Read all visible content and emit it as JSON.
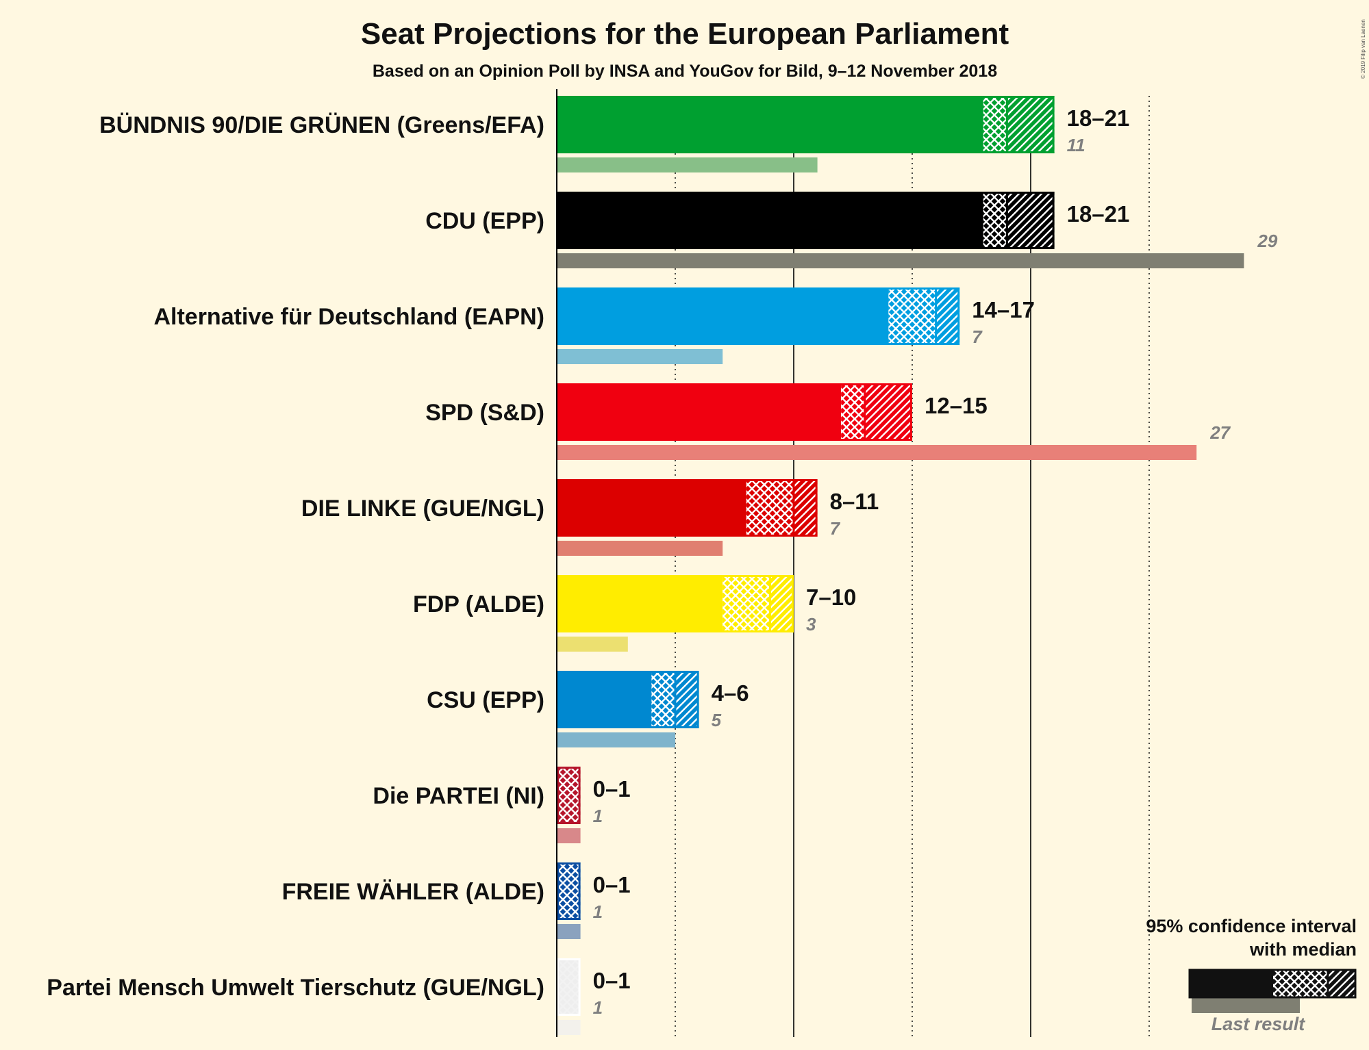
{
  "title": "Seat Projections for the European Parliament",
  "subtitle": "Based on an Opinion Poll by INSA and YouGov for Bild, 9–12 November 2018",
  "copyright": "© 2019 Filip van Laenen",
  "legend": {
    "line1": "95% confidence interval",
    "line2": "with median",
    "last_result": "Last result"
  },
  "chart_data": {
    "type": "bar",
    "orientation": "horizontal",
    "title": "Seat Projections for the European Parliament",
    "subtitle": "Based on an Opinion Poll by INSA and YouGov for Bild, 9–12 November 2018",
    "unit": "seats",
    "xlim": [
      0,
      30
    ],
    "gridlines": [
      5,
      10,
      15,
      20,
      25
    ],
    "parties": [
      {
        "name": "BÜNDNIS 90/DIE GRÜNEN (Greens/EFA)",
        "color": "#00a030",
        "last_color": "#88bf88",
        "low": 18,
        "median": 19,
        "high": 21,
        "range_label": "18–21",
        "last": 11,
        "last_label": "11"
      },
      {
        "name": "CDU (EPP)",
        "color": "#000000",
        "last_color": "#7f7f72",
        "low": 18,
        "median": 19,
        "high": 21,
        "range_label": "18–21",
        "last": 29,
        "last_label": "29"
      },
      {
        "name": "Alternative für Deutschland (EAPN)",
        "color": "#009ee0",
        "last_color": "#7fbfd4",
        "low": 14,
        "median": 16,
        "high": 17,
        "range_label": "14–17",
        "last": 7,
        "last_label": "7"
      },
      {
        "name": "SPD (S&D)",
        "color": "#f00010",
        "last_color": "#e88078",
        "low": 12,
        "median": 13,
        "high": 15,
        "range_label": "12–15",
        "last": 27,
        "last_label": "27"
      },
      {
        "name": "DIE LINKE (GUE/NGL)",
        "color": "#dc0000",
        "last_color": "#e07f70",
        "low": 8,
        "median": 10,
        "high": 11,
        "range_label": "8–11",
        "last": 7,
        "last_label": "7"
      },
      {
        "name": "FDP (ALDE)",
        "color": "#ffed00",
        "last_color": "#ece070",
        "low": 7,
        "median": 9,
        "high": 10,
        "range_label": "7–10",
        "last": 3,
        "last_label": "3"
      },
      {
        "name": "CSU (EPP)",
        "color": "#0088d0",
        "last_color": "#7fb4cc",
        "low": 4,
        "median": 5,
        "high": 6,
        "range_label": "4–6",
        "last": 5,
        "last_label": "5"
      },
      {
        "name": "Die PARTEI (NI)",
        "color": "#b5152b",
        "last_color": "#d8888a",
        "low": 0,
        "median": 0,
        "high": 1,
        "range_label": "0–1",
        "last": 1,
        "last_label": "1"
      },
      {
        "name": "FREIE WÄHLER (ALDE)",
        "color": "#0b4ea2",
        "last_color": "#8aa2be",
        "low": 0,
        "median": 0,
        "high": 1,
        "range_label": "0–1",
        "last": 1,
        "last_label": "1"
      },
      {
        "name": "Partei Mensch Umwelt Tierschutz (GUE/NGL)",
        "color": "#ffffff",
        "last_color": "#f3f1ec",
        "low": 0,
        "median": 0,
        "high": 1,
        "range_label": "0–1",
        "last": 1,
        "last_label": "1"
      }
    ]
  }
}
